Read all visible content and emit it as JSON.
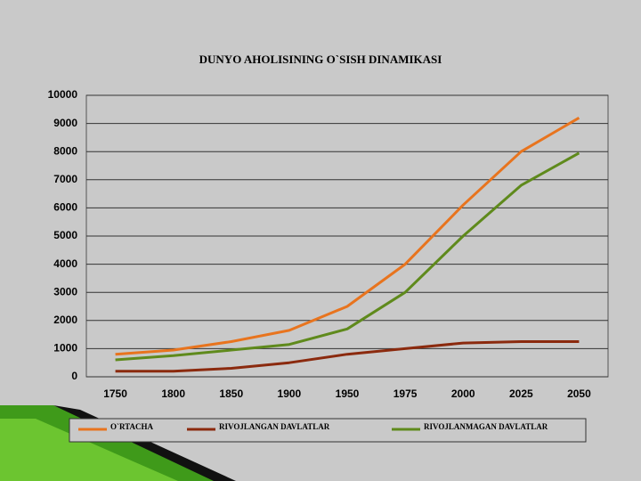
{
  "chart_data": {
    "type": "line",
    "title": "DUNYO AHOLISINING O`SISH DINAMIKASI",
    "categories": [
      "1750",
      "1800",
      "1850",
      "1900",
      "1950",
      "1975",
      "2000",
      "2025",
      "2050"
    ],
    "series": [
      {
        "name": "O`RTACHA",
        "color": "#e8741e",
        "values": [
          800,
          950,
          1250,
          1650,
          2500,
          4000,
          6100,
          8000,
          9200
        ]
      },
      {
        "name": "RIVOJLANGAN DAVLATLAR",
        "color": "#8b2a0e",
        "values": [
          200,
          200,
          300,
          500,
          800,
          1000,
          1200,
          1250,
          1250
        ]
      },
      {
        "name": "RIVOJLANMAGAN DAVLATLAR",
        "color": "#5f8a1c",
        "values": [
          600,
          750,
          950,
          1150,
          1700,
          3000,
          5000,
          6800,
          7950
        ]
      }
    ],
    "ylim": [
      0,
      10000
    ],
    "yticks": [
      0,
      1000,
      2000,
      3000,
      4000,
      5000,
      6000,
      7000,
      8000,
      9000,
      10000
    ],
    "grid": true
  }
}
